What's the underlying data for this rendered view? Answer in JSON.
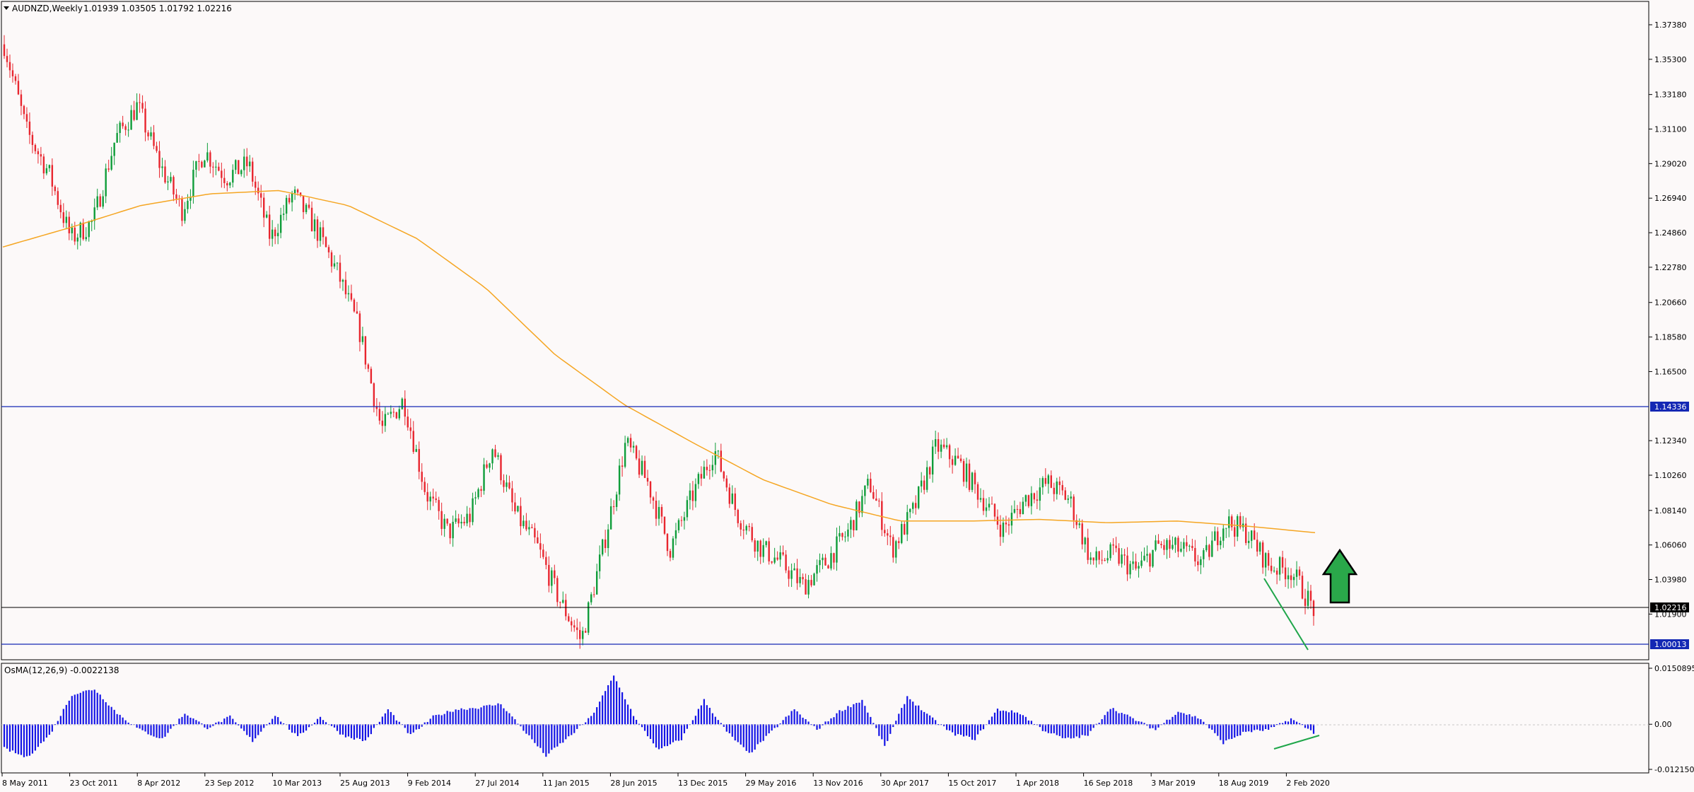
{
  "header": {
    "symbol_label": "AUDNZD,Weekly",
    "ohlc": "1.01939 1.03505 1.01792 1.02216"
  },
  "osma_header": {
    "label": "OsMA(12,26,9) -0.0022138"
  },
  "colors": {
    "background": "#fcf9f9",
    "bull_candle": "#0f9d3a",
    "bear_candle": "#e8262f",
    "ma_line": "#f5a623",
    "level_line": "#1428b4",
    "price_line": "#000000",
    "histogram": "#1414e6",
    "annotation_green": "#1fa64a"
  },
  "chart_data": [
    {
      "type": "candlestick",
      "title": "AUDNZD,Weekly",
      "ylim": [
        1.0,
        1.3738
      ],
      "y_ticks": [
        "1.37380",
        "1.35300",
        "1.33180",
        "1.31100",
        "1.29020",
        "1.26940",
        "1.24860",
        "1.22780",
        "1.20660",
        "1.18580",
        "1.16500",
        "1.12340",
        "1.10260",
        "1.08140",
        "1.06060",
        "1.03980",
        "1.01900"
      ],
      "x_tick_labels": [
        "8 May 2011",
        "23 Oct 2011",
        "8 Apr 2012",
        "23 Sep 2012",
        "10 Mar 2013",
        "25 Aug 2013",
        "9 Feb 2014",
        "27 Jul 2014",
        "11 Jan 2015",
        "28 Jun 2015",
        "13 Dec 2015",
        "29 May 2016",
        "13 Nov 2016",
        "30 Apr 2017",
        "15 Oct 2017",
        "1 Apr 2018",
        "16 Sep 2018",
        "3 Mar 2019",
        "18 Aug 2019",
        "2 Feb 2020"
      ],
      "close_path": [
        [
          "8 May 2011",
          1.362
        ],
        [
          "Jun 2011",
          1.31
        ],
        [
          "Aug 2011",
          1.285
        ],
        [
          "Sep 2011",
          1.245
        ],
        [
          "23 Oct 2011",
          1.255
        ],
        [
          "Dec 2011",
          1.305
        ],
        [
          "Jan 2012",
          1.325
        ],
        [
          "Mar 2012",
          1.29
        ],
        [
          "8 Apr 2012",
          1.262
        ],
        [
          "Jun 2012",
          1.298
        ],
        [
          "Aug 2012",
          1.282
        ],
        [
          "23 Sep 2012",
          1.29
        ],
        [
          "Nov 2012",
          1.245
        ],
        [
          "Jan 2013",
          1.272
        ],
        [
          "10 Mar 2013",
          1.252
        ],
        [
          "May 2013",
          1.225
        ],
        [
          "Jul 2013",
          1.19
        ],
        [
          "25 Aug 2013",
          1.13
        ],
        [
          "Oct 2013",
          1.148
        ],
        [
          "Dec 2013",
          1.092
        ],
        [
          "9 Feb 2014",
          1.068
        ],
        [
          "Apr 2014",
          1.078
        ],
        [
          "27 Jul 2014",
          1.12
        ],
        [
          "Sep 2014",
          1.08
        ],
        [
          "Nov 2014",
          1.06
        ],
        [
          "11 Jan 2015",
          1.028
        ],
        [
          "Mar 2015",
          1.003
        ],
        [
          "May 2015",
          1.06
        ],
        [
          "28 Jun 2015",
          1.122
        ],
        [
          "Aug 2015",
          1.098
        ],
        [
          "Oct 2015",
          1.058
        ],
        [
          "13 Dec 2015",
          1.09
        ],
        [
          "Feb 2016",
          1.118
        ],
        [
          "Apr 2016",
          1.08
        ],
        [
          "29 May 2016",
          1.06
        ],
        [
          "Aug 2016",
          1.05
        ],
        [
          "Sep 2016",
          1.036
        ],
        [
          "13 Nov 2016",
          1.05
        ],
        [
          "Jan 2017",
          1.068
        ],
        [
          "Feb 2017",
          1.098
        ],
        [
          "30 Apr 2017",
          1.058
        ],
        [
          "Jun 2017",
          1.082
        ],
        [
          "Aug 2017",
          1.12
        ],
        [
          "15 Oct 2017",
          1.11
        ],
        [
          "Dec 2017",
          1.09
        ],
        [
          "Jan 2018",
          1.07
        ],
        [
          "1 Apr 2018",
          1.088
        ],
        [
          "May 2018",
          1.098
        ],
        [
          "Jul 2018",
          1.088
        ],
        [
          "16 Sep 2018",
          1.05
        ],
        [
          "Nov 2018",
          1.055
        ],
        [
          "Jan 2019",
          1.045
        ],
        [
          "3 Mar 2019",
          1.06
        ],
        [
          "May 2019",
          1.058
        ],
        [
          "Jul 2019",
          1.05
        ],
        [
          "18 Aug 2019",
          1.075
        ],
        [
          "Oct 2019",
          1.068
        ],
        [
          "Dec 2019",
          1.048
        ],
        [
          "2 Feb 2020",
          1.045
        ],
        [
          "Mar 2020",
          1.022
        ]
      ],
      "ma_path": [
        [
          "8 May 2011",
          1.24
        ],
        [
          "Dec 2011",
          1.252
        ],
        [
          "Apr 2012",
          1.265
        ],
        [
          "Sep 2012",
          1.272
        ],
        [
          "Mar 2013",
          1.274
        ],
        [
          "Aug 2013",
          1.265
        ],
        [
          "Feb 2014",
          1.245
        ],
        [
          "Jul 2014",
          1.215
        ],
        [
          "Jan 2015",
          1.175
        ],
        [
          "Jun 2015",
          1.145
        ],
        [
          "Dec 2015",
          1.122
        ],
        [
          "May 2016",
          1.1
        ],
        [
          "Nov 2016",
          1.085
        ],
        [
          "Apr 2017",
          1.075
        ],
        [
          "Oct 2017",
          1.075
        ],
        [
          "Apr 2018",
          1.076
        ],
        [
          "Sep 2018",
          1.074
        ],
        [
          "Mar 2019",
          1.075
        ],
        [
          "Aug 2019",
          1.072
        ],
        [
          "2 Feb 2020",
          1.068
        ]
      ],
      "horizontal_levels": [
        {
          "label": "1.14336",
          "value": 1.14336
        },
        {
          "label": "1.02216",
          "value": 1.02216
        },
        {
          "label": "1.00013",
          "value": 1.00013
        }
      ],
      "trendline": {
        "from": [
          "Sep 2019",
          1.036
        ],
        "to": [
          "Mar 2020",
          1.0
        ]
      },
      "annotation": "up arrow"
    },
    {
      "type": "bar",
      "title": "OsMA(12,26,9) -0.0022138",
      "ylim": [
        -0.0121505,
        0.0150895
      ],
      "y_ticks": [
        "0.0150895",
        "0.00",
        "-0.0121505"
      ],
      "path": [
        [
          "8 May 2011",
          -0.0065
        ],
        [
          "Jun 2011",
          -0.009
        ],
        [
          "Aug 2011",
          -0.003
        ],
        [
          "Sep 2011",
          0.008
        ],
        [
          "23 Oct 2011",
          0.0095
        ],
        [
          "Dec 2011",
          0.003
        ],
        [
          "Jan 2012",
          -0.0015
        ],
        [
          "Mar 2012",
          -0.004
        ],
        [
          "8 Apr 2012",
          0.003
        ],
        [
          "Jun 2012",
          -0.001
        ],
        [
          "Aug 2012",
          0.002
        ],
        [
          "23 Sep 2012",
          -0.0045
        ],
        [
          "Nov 2012",
          0.0025
        ],
        [
          "Jan 2013",
          -0.0035
        ],
        [
          "10 Mar 2013",
          0.002
        ],
        [
          "May 2013",
          -0.003
        ],
        [
          "Jul 2013",
          -0.0045
        ],
        [
          "25 Aug 2013",
          0.004
        ],
        [
          "Oct 2013",
          -0.003
        ],
        [
          "Dec 2013",
          0.002
        ],
        [
          "9 Feb 2014",
          0.004
        ],
        [
          "Apr 2014",
          0.0045
        ],
        [
          "27 Jul 2014",
          0.0055
        ],
        [
          "Sep 2014",
          -0.0015
        ],
        [
          "Nov 2014",
          -0.0085
        ],
        [
          "11 Jan 2015",
          -0.0035
        ],
        [
          "Mar 2015",
          0.002
        ],
        [
          "May 2015",
          0.013
        ],
        [
          "28 Jun 2015",
          0.001
        ],
        [
          "Aug 2015",
          -0.007
        ],
        [
          "Oct 2015",
          -0.004
        ],
        [
          "13 Dec 2015",
          0.0065
        ],
        [
          "Feb 2016",
          -0.002
        ],
        [
          "Apr 2016",
          -0.008
        ],
        [
          "29 May 2016",
          -0.002
        ],
        [
          "Aug 2016",
          0.004
        ],
        [
          "Sep 2016",
          -0.0015
        ],
        [
          "13 Nov 2016",
          0.0035
        ],
        [
          "Jan 2017",
          0.0065
        ],
        [
          "Feb 2017",
          -0.006
        ],
        [
          "30 Apr 2017",
          0.0075
        ],
        [
          "Jun 2017",
          0.002
        ],
        [
          "Aug 2017",
          -0.0025
        ],
        [
          "15 Oct 2017",
          -0.004
        ],
        [
          "Dec 2017",
          0.004
        ],
        [
          "Jan 2018",
          0.003
        ],
        [
          "1 Apr 2018",
          -0.0015
        ],
        [
          "May 2018",
          -0.004
        ],
        [
          "Jul 2018",
          -0.003
        ],
        [
          "16 Sep 2018",
          0.0045
        ],
        [
          "Nov 2018",
          0.0015
        ],
        [
          "Jan 2019",
          -0.0015
        ],
        [
          "3 Mar 2019",
          0.0035
        ],
        [
          "May 2019",
          0.0015
        ],
        [
          "Jul 2019",
          -0.005
        ],
        [
          "18 Aug 2019",
          -0.002
        ],
        [
          "Oct 2019",
          -0.0015
        ],
        [
          "Dec 2019",
          0.0015
        ],
        [
          "2 Feb 2020",
          -0.0022
        ]
      ],
      "trendline": {
        "from": [
          "Oct 2019",
          -0.011
        ],
        "to": [
          "Mar 2020",
          -0.0055
        ]
      }
    }
  ]
}
